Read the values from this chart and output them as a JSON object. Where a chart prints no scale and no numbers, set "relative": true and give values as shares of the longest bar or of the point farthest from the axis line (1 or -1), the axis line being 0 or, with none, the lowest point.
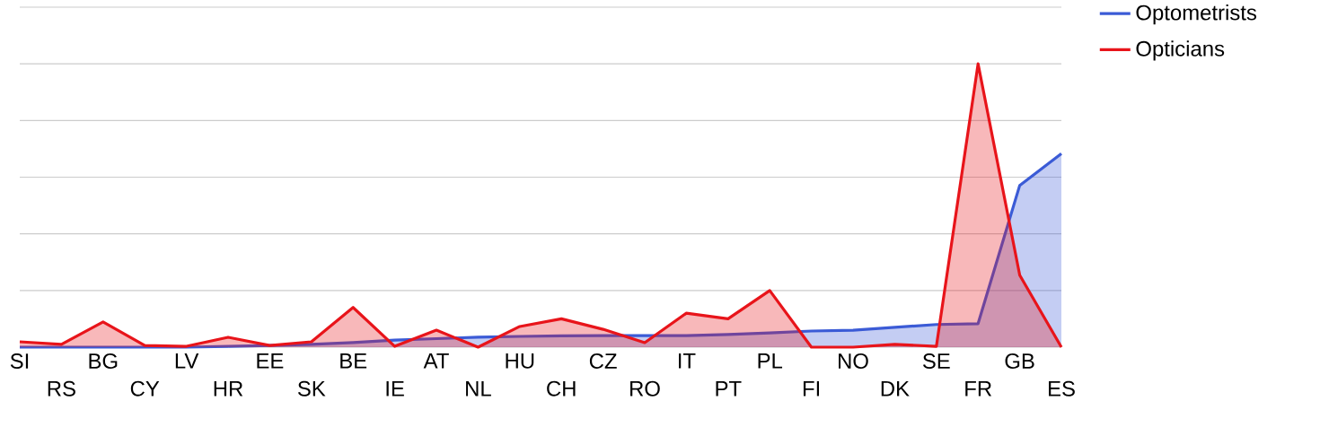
{
  "chart_data": {
    "type": "area",
    "relative": true,
    "grid": "y",
    "legend": "top right",
    "categories": [
      "SI",
      "RS",
      "BG",
      "CY",
      "LV",
      "HR",
      "EE",
      "SK",
      "BE",
      "IE",
      "AT",
      "NL",
      "HU",
      "CH",
      "CZ",
      "RO",
      "IT",
      "PT",
      "PL",
      "FI",
      "NO",
      "DK",
      "SE",
      "FR",
      "GB",
      "ES"
    ],
    "series": [
      {
        "name": "Optometrists",
        "color": "#3b5bd6",
        "values": [
          0,
          0,
          0,
          0,
          0,
          0.003,
          0.006,
          0.01,
          0.016,
          0.025,
          0.03,
          0.035,
          0.038,
          0.04,
          0.041,
          0.041,
          0.041,
          0.045,
          0.05,
          0.057,
          0.06,
          0.07,
          0.08,
          0.083,
          0.571,
          0.683
        ]
      },
      {
        "name": "Opticians",
        "color": "#e8141a",
        "values": [
          0.019,
          0.01,
          0.089,
          0.006,
          0.003,
          0.035,
          0.006,
          0.019,
          0.14,
          0.003,
          0.06,
          0,
          0.073,
          0.1,
          0.063,
          0.016,
          0.12,
          0.1,
          0.2,
          0,
          0,
          0.01,
          0.003,
          1,
          0.254,
          0
        ]
      }
    ]
  }
}
